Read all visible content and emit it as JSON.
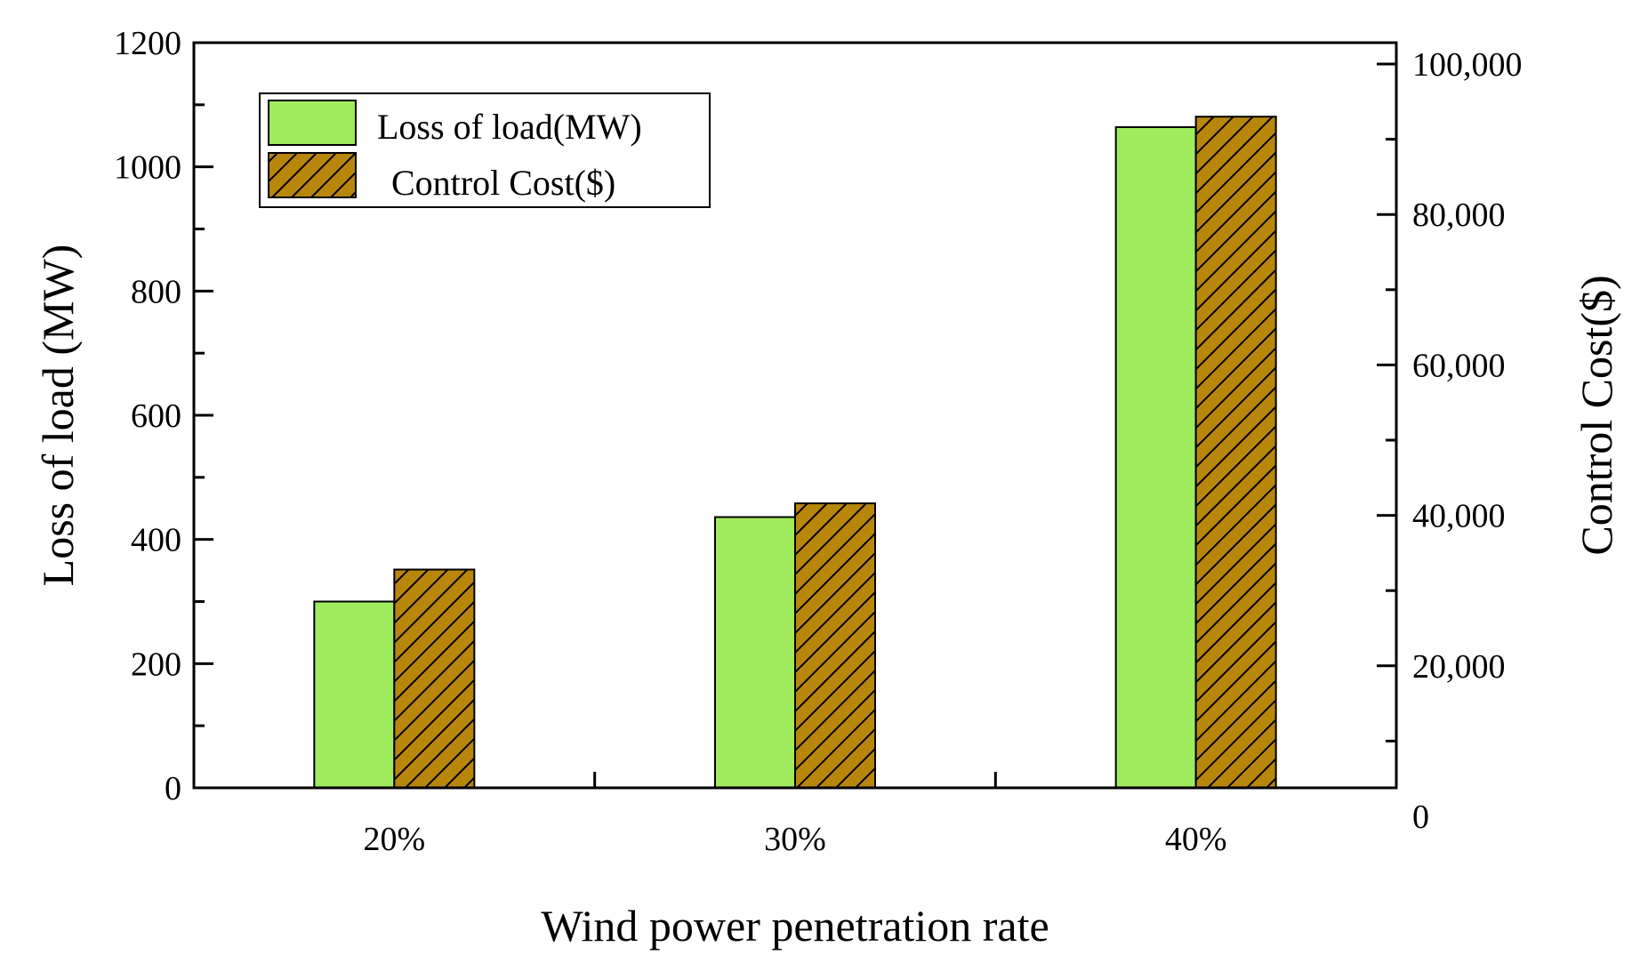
{
  "chart_data": {
    "type": "bar",
    "categories": [
      "20%",
      "30%",
      "40%"
    ],
    "xlabel": "Wind power penetration rate",
    "ylabel": "Loss of load (MW)",
    "y2label": "Control Cost($)",
    "ylim": [
      0,
      1200
    ],
    "y2lim": [
      0,
      100000
    ],
    "yticks": [
      "0",
      "200",
      "400",
      "600",
      "800",
      "1000",
      "1200"
    ],
    "y2ticks": [
      "0",
      "20,000",
      "40,000",
      "60,000",
      "80,000",
      "100,000"
    ],
    "grid": false,
    "legend_position": "top-left",
    "series": [
      {
        "name": "Loss of load(MW)",
        "axis": "left",
        "values": [
          300,
          436,
          1064
        ],
        "color": "#a0eb5e",
        "pattern": "solid"
      },
      {
        "name": "Control Cost($)",
        "axis": "right",
        "values": [
          32800,
          41600,
          93000
        ],
        "color": "#b8860b",
        "pattern": "hatch"
      }
    ]
  }
}
